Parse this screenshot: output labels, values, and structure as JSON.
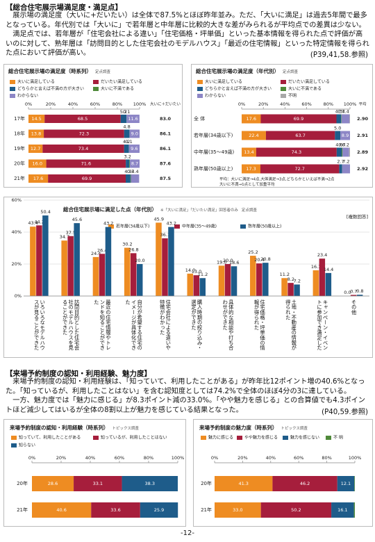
{
  "sections": [
    {
      "heading": "【総合住宅展示場満足度・満足点】",
      "paragraphs": [
        "展示場の満足度（大いに+だいたい）は全体で87.5%とほぼ昨年並み。ただ、「大いに満足」は過去5年間で最多となっている。年代別では「大いに」で若年層と中年層に比較的大きな差がみられるが平均点での差異は少ない。",
        "満足点では、若年層が「住宅会社による違い」「住宅価格・坪単価」といった基本情報を得られた点で評価が高いのに対して、熟年層は「訪問目的とした住宅会社のモデルハウス」「最近の住宅情報」といった特定情報を得られた点において評価が高い。"
      ],
      "reference": "(P39,41,58.参照)"
    },
    {
      "heading": "【来場予約制度の認知・利用経験、魅力度】",
      "paragraphs": [
        "来場予約制度の認知・利用経験は、「知っていて、利用したことがある」が昨年比12ポイント増の40.6%となった。「知っているが、利用したことはない」を含む認知度としては74.2%で全体のほぼ4分の3に達している。",
        "一方、魅力度では「魅力に感じる」が8.3ポイント減の33.0%。「やや魅力を感じる」との合算値でも4.3ポイントほど減少してはいるが全体の8割以上が魅力を感じている結果となった。"
      ],
      "reference": "(P40,59.参照)"
    }
  ],
  "page_number": "-12-",
  "chart_data": [
    {
      "type": "bar",
      "orientation": "horizontal",
      "stacked": true,
      "title": "総合住宅展示場の満足度（時系列）",
      "note": "定点調査",
      "categories": [
        "17年",
        "18年",
        "19年",
        "20年",
        "21年"
      ],
      "series": [
        {
          "name": "大いに満足している",
          "color": "#ee8c22",
          "values": [
            14.5,
            13.8,
            12.7,
            16.0,
            17.6
          ],
          "value_labels": [
            "14.5",
            "13.8",
            "12.7",
            "16.0",
            "17.6"
          ]
        },
        {
          "name": "だいたい満足している",
          "color": "#a61e3c",
          "values": [
            68.5,
            72.3,
            73.4,
            71.6,
            69.9
          ],
          "value_labels": [
            "68.5",
            "72.3",
            "73.4",
            "71.6",
            "69.9"
          ]
        },
        {
          "name": "どちらかと言えば不満の方が大きい",
          "color": "#1e5c8a",
          "values": [
            5.2,
            4.8,
            4.2,
            3.2,
            4.3
          ],
          "value_labels": [
            "5.2",
            "4.8",
            "4.2",
            "3.2",
            "4.3"
          ]
        },
        {
          "name": "大いに不満である",
          "color": "#4f8a3a",
          "values": [
            0.1,
            0.1,
            0.1,
            0.5,
            0.4
          ],
          "value_labels": [
            "0.1",
            null,
            "0.1",
            null,
            "0.4"
          ]
        },
        {
          "name": "わからない",
          "color": "#8d86c6",
          "values": [
            11.6,
            9.0,
            9.6,
            8.7,
            7.4
          ],
          "value_labels": [
            "11.6",
            "9.0",
            "9.6",
            "8.7",
            "7.4"
          ]
        }
      ],
      "xlim": [
        0,
        100
      ],
      "xticks": [
        {
          "value": 0,
          "label": "0%"
        },
        {
          "value": 20,
          "label": "20%"
        },
        {
          "value": 40,
          "label": "40%"
        },
        {
          "value": 60,
          "label": "60%"
        },
        {
          "value": 80,
          "label": "80%"
        },
        {
          "value": 100,
          "label": "100%"
        }
      ],
      "summary": {
        "label": "大いに＋だいたい",
        "values": [
          83.0,
          86.1,
          86.1,
          87.6,
          87.5
        ],
        "value_labels": [
          "83.0",
          "86.1",
          "86.1",
          "87.6",
          "87.5"
        ]
      }
    },
    {
      "type": "bar",
      "orientation": "horizontal",
      "stacked": true,
      "title": "総合住宅展示場の満足度（年代別）",
      "note": "定点調査",
      "categories": [
        "全 体",
        "若年層(34歳以下)",
        "中年層(35～49歳)",
        "熟年層(50歳以上)"
      ],
      "series": [
        {
          "name": "大いに満足している",
          "color": "#ee8c22",
          "values": [
            17.6,
            22.4,
            13.4,
            17.3
          ],
          "value_labels": [
            "17.6",
            "22.4",
            "13.4",
            "17.3"
          ]
        },
        {
          "name": "だいたい満足している",
          "color": "#a61e3c",
          "values": [
            69.9,
            63.7,
            74.3,
            72.7
          ],
          "value_labels": [
            "69.9",
            "63.7",
            "74.3",
            "72.7"
          ]
        },
        {
          "name": "どちらかと言えば不満の方が大きい",
          "color": "#1e5c8a",
          "values": [
            4.3,
            5.0,
            4.6,
            2.7
          ],
          "value_labels": [
            "4.3",
            "5.0",
            "4.6",
            "2.7"
          ]
        },
        {
          "name": "大いに不満である",
          "color": "#4f8a3a",
          "values": [
            0.4,
            0.0,
            0.7,
            0.1
          ],
          "value_labels": [
            "0.4",
            null,
            "0.7",
            null
          ]
        },
        {
          "name": "わからない",
          "color": "#8d86c6",
          "values": [
            7.4,
            8.9,
            6.2,
            7.2
          ],
          "value_labels": [
            "7.4",
            "8.9",
            "6.2",
            "7.2"
          ]
        },
        {
          "name": "不明",
          "color": "#a8a8a8",
          "values": [
            0.4,
            0.0,
            0.8,
            0.0
          ],
          "value_labels": [
            null,
            null,
            null,
            null
          ]
        }
      ],
      "xlim": [
        0,
        100
      ],
      "xticks": [
        {
          "value": 0,
          "label": "0%"
        },
        {
          "value": 20,
          "label": "20%"
        },
        {
          "value": 40,
          "label": "40%"
        },
        {
          "value": 60,
          "label": "60%"
        },
        {
          "value": 80,
          "label": "80%"
        },
        {
          "value": 100,
          "label": "100%"
        }
      ],
      "summary": {
        "label": "平均",
        "values": [
          2.9,
          2.91,
          2.89,
          2.92
        ],
        "value_labels": [
          "2.90",
          "2.91",
          "2.89",
          "2.92"
        ]
      },
      "footnotes": [
        "平均：大いに満足→4点,大体満足→3点,どちらかといえば不満→2点",
        "大いに不満→1点として加重平均"
      ]
    },
    {
      "type": "bar",
      "orientation": "vertical",
      "stacked": false,
      "title": "総合住宅展示場に満足した点（年代別）",
      "subtitle": "※「大いに満足」「だいたい満足」回答者のみ",
      "note": "定点調査",
      "annotation": "[複数回答]",
      "categories": [
        "いろいろなモデルハウスが見ることができた",
        "訪問目的とした住宅会社のモデルハウスを見ることができた",
        "最近の住宅情報やトレンドを知ることができた",
        "自分が希望する住宅のイメージが具体化できた",
        "住宅会社による違いや特徴がわかった",
        "購入時期の絞り込み・選定ができた",
        "具体的な相談や打ち合わせができた",
        "住宅価格・坪単価の情報が得られた",
        "土地・不動産の情報が得られた",
        "キャンペーン・イベントに参加でき満足した",
        "その他"
      ],
      "series": [
        {
          "name": "若年層(34歳以下)",
          "color": "#ee8c22",
          "values": [
            43.4,
            34.7,
            24.4,
            30.2,
            45.9,
            14.0,
            19.0,
            25.2,
            11.2,
            16.1,
            0.0
          ],
          "value_labels": [
            "43.4",
            "34.7",
            "24.4",
            "30.2",
            "45.9",
            "14.0",
            "19.0",
            "25.2",
            "11.2",
            "16.1",
            "0.0"
          ]
        },
        {
          "name": "中年層(35～49歳)",
          "color": "#a61e3c",
          "values": [
            44.2,
            37.5,
            26.4,
            26.8,
            36.1,
            13.0,
            20.0,
            20.4,
            8.2,
            23.4,
            0.7
          ],
          "value_labels": [
            "44.2",
            "37.5",
            "26.4",
            "26.8",
            "36.1",
            "13.0",
            "20.0",
            "20.4",
            "8.2",
            "23.4",
            "0.7"
          ]
        },
        {
          "name": "熟年層(50歳以上)",
          "color": "#1e5c8a",
          "values": [
            50.4,
            45.6,
            43.2,
            20.0,
            43.2,
            11.2,
            18.6,
            20.8,
            7.2,
            14.4,
            0.8
          ],
          "value_labels": [
            "50.4",
            "45.6",
            "43.2",
            "20.0",
            "43.2",
            "11.2",
            "18.6",
            "20.8",
            "7.2",
            "14.4",
            "0.8"
          ]
        }
      ],
      "ylim": [
        0,
        60
      ],
      "yticks": [
        {
          "value": 0,
          "label": "0%"
        },
        {
          "value": 20,
          "label": "20%"
        },
        {
          "value": 40,
          "label": "40%"
        },
        {
          "value": 60,
          "label": "60%"
        }
      ],
      "grid": true
    },
    {
      "type": "bar",
      "orientation": "horizontal",
      "stacked": true,
      "title": "来場予約制度の認知・利用経験（時系列）",
      "note": "トピックス調査",
      "categories": [
        "20年",
        "21年"
      ],
      "series": [
        {
          "name": "知っていて、利用したことがある",
          "color": "#ee8c22",
          "values": [
            28.6,
            40.6
          ],
          "value_labels": [
            "28.6",
            "40.6"
          ]
        },
        {
          "name": "知っているが、利用したことはない",
          "color": "#a61e3c",
          "values": [
            33.1,
            33.6
          ],
          "value_labels": [
            "33.1",
            "33.6"
          ]
        },
        {
          "name": "知らない",
          "color": "#1e5c8a",
          "values": [
            38.3,
            25.9
          ],
          "value_labels": [
            "38.3",
            "25.9"
          ]
        }
      ],
      "xlim": [
        0,
        100
      ],
      "xticks": [
        {
          "value": 0,
          "label": "0%"
        },
        {
          "value": 20,
          "label": "20%"
        },
        {
          "value": 40,
          "label": "40%"
        },
        {
          "value": 60,
          "label": "60%"
        },
        {
          "value": 80,
          "label": "80%"
        },
        {
          "value": 100,
          "label": "100%"
        }
      ]
    },
    {
      "type": "bar",
      "orientation": "horizontal",
      "stacked": true,
      "title": "来場予約制度の魅力度（時系列）",
      "note": "トピックス調査",
      "categories": [
        "20年",
        "21年"
      ],
      "series": [
        {
          "name": "魅力に感じる",
          "color": "#ee8c22",
          "values": [
            41.3,
            33.0
          ],
          "value_labels": [
            "41.3",
            "33.0"
          ]
        },
        {
          "name": "やや魅力を感じる",
          "color": "#a61e3c",
          "values": [
            46.2,
            50.2
          ],
          "value_labels": [
            "46.2",
            "50.2"
          ]
        },
        {
          "name": "魅力を感じない",
          "color": "#1e5c8a",
          "values": [
            12.1,
            16.1
          ],
          "value_labels": [
            "12.1",
            "16.1"
          ]
        },
        {
          "name": "不 明",
          "color": "#4f8a3a",
          "values": [
            0.4,
            0.7
          ],
          "value_labels": [
            null,
            null
          ]
        }
      ],
      "xlim": [
        0,
        100
      ],
      "xticks": [
        {
          "value": 0,
          "label": "0%"
        },
        {
          "value": 20,
          "label": "20%"
        },
        {
          "value": 40,
          "label": "40%"
        },
        {
          "value": 60,
          "label": "60%"
        },
        {
          "value": 80,
          "label": "80%"
        },
        {
          "value": 100,
          "label": "100%"
        }
      ]
    }
  ]
}
